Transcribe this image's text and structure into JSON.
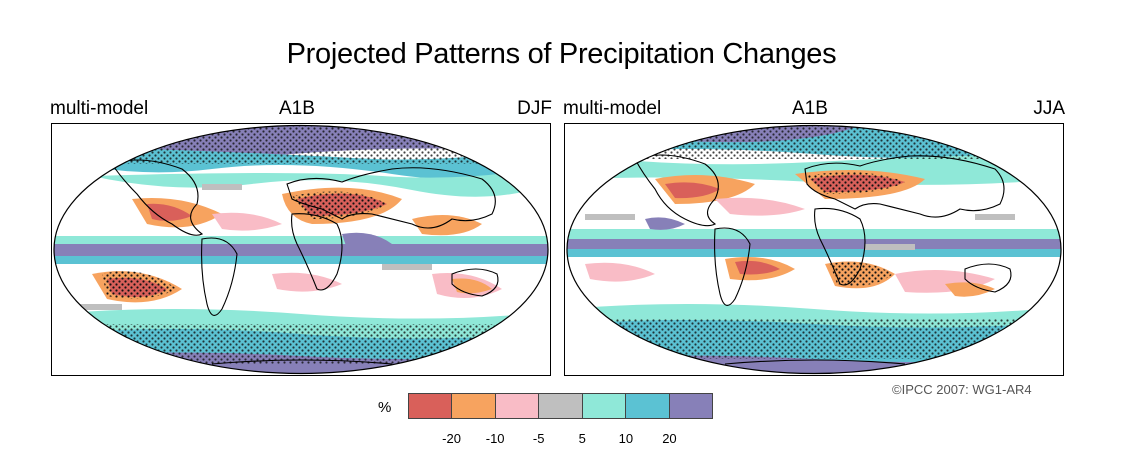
{
  "title": "Projected Patterns of Precipitation Changes",
  "panels": [
    {
      "left_label": "multi-model",
      "scenario": "A1B",
      "season": "DJF"
    },
    {
      "left_label": "multi-model",
      "scenario": "A1B",
      "season": "JJA"
    }
  ],
  "credit": "©IPCC  2007: WG1-AR4",
  "legend": {
    "unit": "%",
    "colors": [
      "#d9605a",
      "#f7a35f",
      "#f9bcc6",
      "#bfbfbf",
      "#8fe8d8",
      "#5bc2d3",
      "#8780b8"
    ],
    "tick_labels": [
      "-20",
      "-10",
      "-5",
      "5",
      "10",
      "20"
    ]
  },
  "colors": {
    "land_outline": "#000000",
    "stipple": "#111111"
  }
}
